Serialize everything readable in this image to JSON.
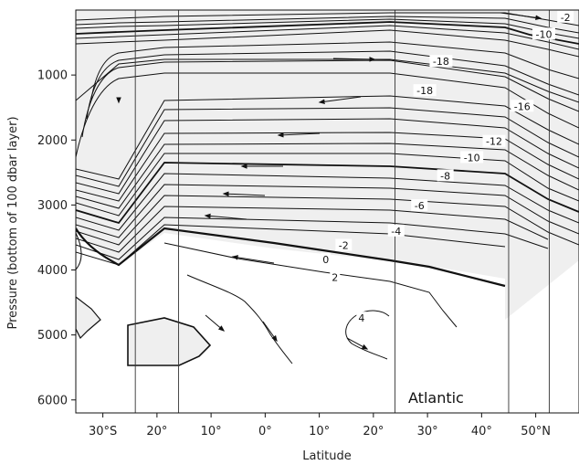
{
  "chart_data": {
    "type": "contour",
    "basin": "Atlantic",
    "xlabel": "Latitude",
    "ylabel": "Pressure (bottom of 100 dbar layer)",
    "xlim": [
      -35,
      58
    ],
    "ylim": [
      6200,
      0
    ],
    "x_ticks": [
      {
        "value": -30,
        "label": "30°S"
      },
      {
        "value": -20,
        "label": "20°"
      },
      {
        "value": -10,
        "label": "10°"
      },
      {
        "value": 0,
        "label": "0°"
      },
      {
        "value": 10,
        "label": "10°"
      },
      {
        "value": 20,
        "label": "20°"
      },
      {
        "value": 30,
        "label": "30°"
      },
      {
        "value": 40,
        "label": "40°"
      },
      {
        "value": 50,
        "label": "50°N"
      }
    ],
    "y_ticks": [
      {
        "value": 1000,
        "label": "1000"
      },
      {
        "value": 2000,
        "label": "2000"
      },
      {
        "value": 3000,
        "label": "3000"
      },
      {
        "value": 4000,
        "label": "4000"
      },
      {
        "value": 5000,
        "label": "5000"
      },
      {
        "value": 6000,
        "label": "6000"
      }
    ],
    "section_latitudes": [
      -24,
      -16,
      24,
      45,
      52.5
    ],
    "contour_labels": [
      {
        "text": "-2",
        "lat": 55.5,
        "p": 110
      },
      {
        "text": "-10",
        "lat": 51.5,
        "p": 370
      },
      {
        "text": "-18",
        "lat": 32.5,
        "p": 790
      },
      {
        "text": "-18",
        "lat": 29.5,
        "p": 1240
      },
      {
        "text": "-16",
        "lat": 47.5,
        "p": 1480
      },
      {
        "text": "-12",
        "lat": 42.3,
        "p": 2020
      },
      {
        "text": "-10",
        "lat": 38.2,
        "p": 2270
      },
      {
        "text": "-8",
        "lat": 33.3,
        "p": 2550
      },
      {
        "text": "-6",
        "lat": 28.5,
        "p": 3010
      },
      {
        "text": "-4",
        "lat": 24.2,
        "p": 3400
      },
      {
        "text": "-2",
        "lat": 14.5,
        "p": 3620
      },
      {
        "text": "0",
        "lat": 11.2,
        "p": 3840
      },
      {
        "text": "2",
        "lat": 12.9,
        "p": 4110
      },
      {
        "text": "4",
        "lat": 17.8,
        "p": 4740
      }
    ]
  }
}
